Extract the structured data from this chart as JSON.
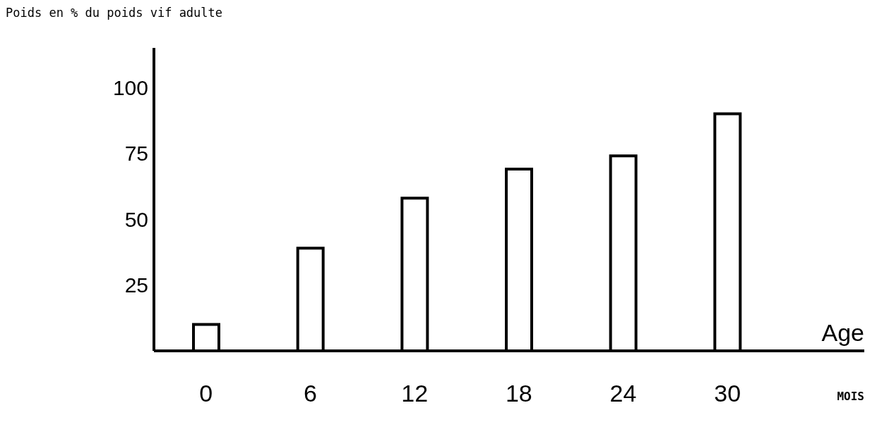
{
  "chart_data": {
    "type": "bar",
    "ylabel": "Poids en % du poids vif adulte",
    "xlabel": "MOIS",
    "annotations": [
      "Age"
    ],
    "categories": [
      "0",
      "6",
      "12",
      "18",
      "24",
      "30"
    ],
    "values": [
      10,
      39,
      58,
      69,
      74,
      90
    ],
    "color": "#ffffff",
    "ylim": [
      0,
      115
    ],
    "yticks": [
      25,
      50,
      75,
      100
    ]
  }
}
